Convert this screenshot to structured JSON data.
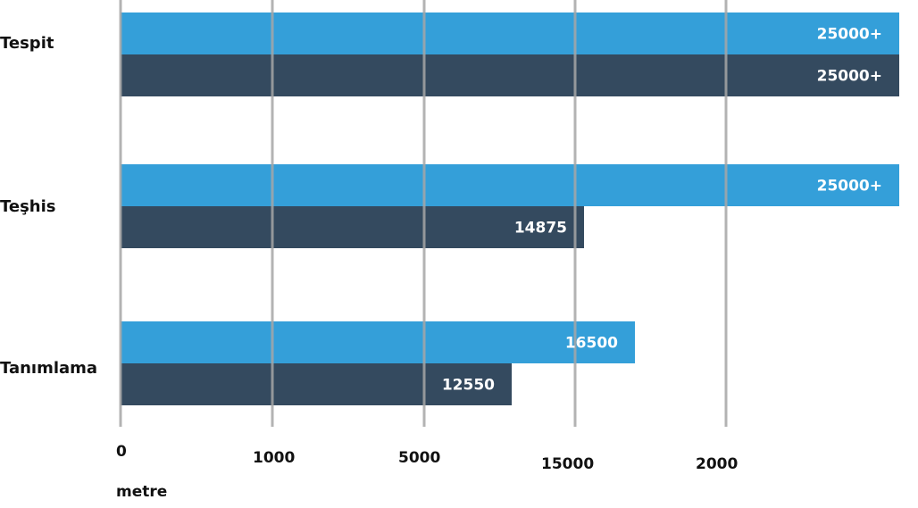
{
  "chart_data": {
    "type": "bar",
    "orientation": "horizontal",
    "categories": [
      "Tespit",
      "Teşhis",
      "Tanımlama"
    ],
    "series": [
      {
        "color": "#349fd9",
        "values": [
          25000,
          25000,
          16500
        ],
        "labels": [
          "25000+",
          "25000+",
          "16500"
        ]
      },
      {
        "color": "#344a5f",
        "values": [
          25000,
          14875,
          12550
        ],
        "labels": [
          "25000+",
          "14875",
          "12550"
        ]
      }
    ],
    "x_tick_labels": [
      "0",
      "1000",
      "5000",
      "15000",
      "2000"
    ],
    "xlabel": "metre",
    "grid": true,
    "gridline_color": "#a6a6a6"
  }
}
